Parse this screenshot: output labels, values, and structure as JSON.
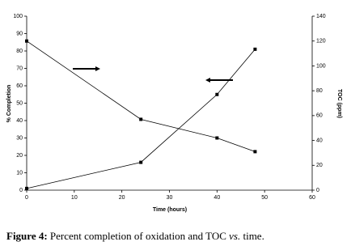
{
  "chart_data": {
    "type": "line",
    "x_label": "Time (hours)",
    "y_label": "% Completion",
    "y2_label": "TOC (ppm)",
    "x": [
      0,
      24,
      40,
      48
    ],
    "series": [
      {
        "color": "#000000",
        "values": [
          1,
          16,
          55,
          81
        ]
      },
      {
        "color": "#000000",
        "axis": "y2",
        "values": [
          120,
          57,
          42,
          31
        ]
      }
    ],
    "xlim": [
      0,
      60
    ],
    "xticks": [
      0,
      10,
      20,
      30,
      40,
      50,
      60
    ],
    "ylim": [
      0,
      100
    ],
    "yticks": [
      0,
      10,
      20,
      30,
      40,
      50,
      60,
      70,
      80,
      90,
      100
    ],
    "y2lim": [
      0,
      140
    ],
    "y2ticks": [
      0,
      20,
      40,
      60,
      80,
      100,
      120,
      140
    ]
  },
  "caption": {
    "label": "Figure 4:",
    "text": "Percent completion of oxidation and TOC",
    "italic": "vs.",
    "end": "time."
  }
}
